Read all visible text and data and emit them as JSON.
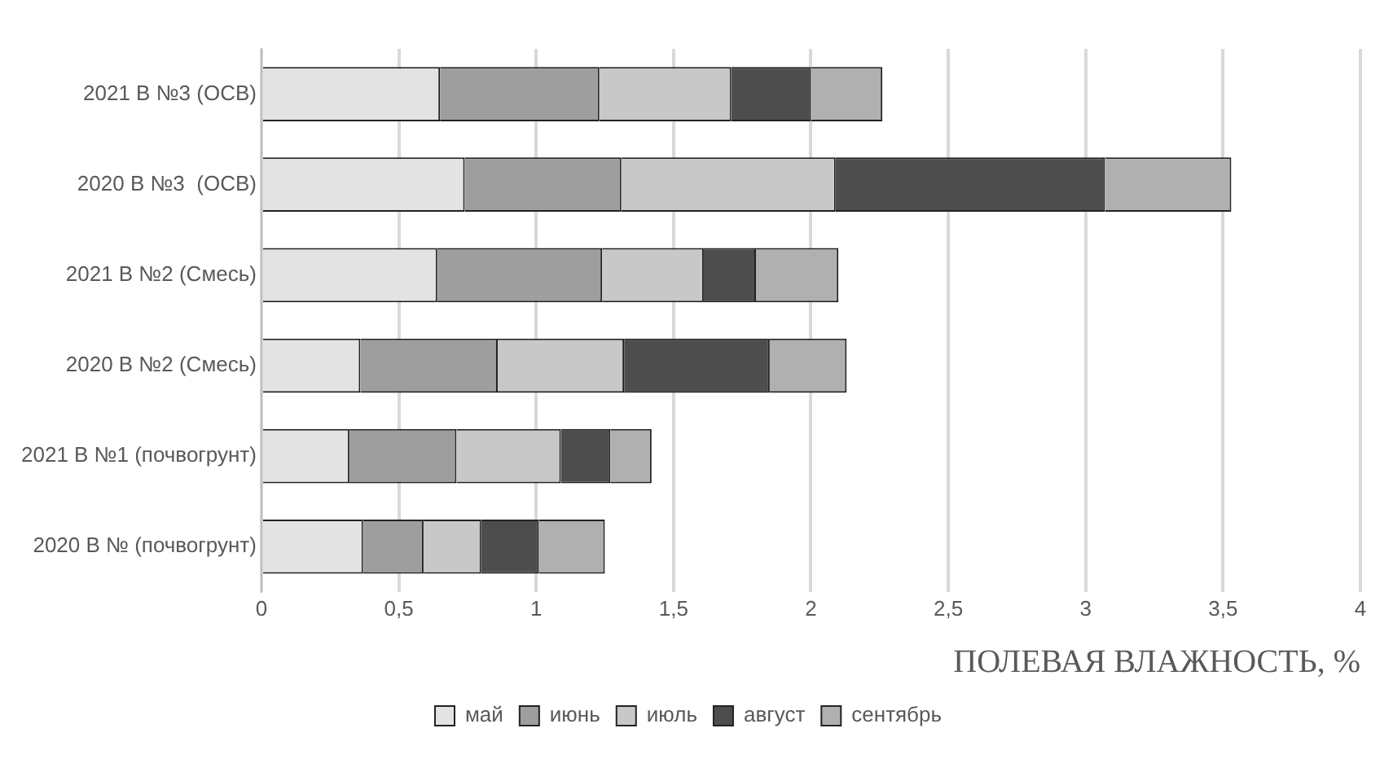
{
  "chart_data": {
    "type": "bar",
    "orientation": "horizontal",
    "stacked": true,
    "xlabel": "ПОЛЕВАЯ ВЛАЖНОСТЬ, %",
    "categories": [
      "2021 В №3 (ОСВ)",
      "2020 В №3  (ОСВ)",
      "2021 В №2 (Смесь)",
      "2020 В №2 (Смесь)",
      "2021 В №1 (почвогрунт)",
      "2020 В № (почвогрунт)"
    ],
    "series": [
      {
        "name": "май",
        "color": "#e3e3e3",
        "values": [
          0.65,
          0.74,
          0.64,
          0.36,
          0.32,
          0.37
        ]
      },
      {
        "name": "июнь",
        "color": "#9e9e9e",
        "values": [
          0.58,
          0.57,
          0.6,
          0.5,
          0.39,
          0.22
        ]
      },
      {
        "name": "июль",
        "color": "#c8c8c8",
        "values": [
          0.48,
          0.78,
          0.37,
          0.46,
          0.38,
          0.21
        ]
      },
      {
        "name": "август",
        "color": "#4d4d4d",
        "values": [
          0.29,
          0.98,
          0.19,
          0.53,
          0.18,
          0.21
        ]
      },
      {
        "name": "сентябрь",
        "color": "#b0b0b0",
        "values": [
          0.26,
          0.46,
          0.3,
          0.28,
          0.15,
          0.24
        ]
      }
    ],
    "xlim": [
      0,
      4
    ],
    "xticks": [
      0,
      {
        "value": 0.5,
        "label": "0,5"
      },
      1,
      {
        "value": 1.5,
        "label": "1,5"
      },
      2,
      {
        "value": 2.5,
        "label": "2,5"
      },
      3,
      {
        "value": 3.5,
        "label": "3,5"
      },
      4
    ],
    "grid": "x",
    "legend": "bottom"
  }
}
